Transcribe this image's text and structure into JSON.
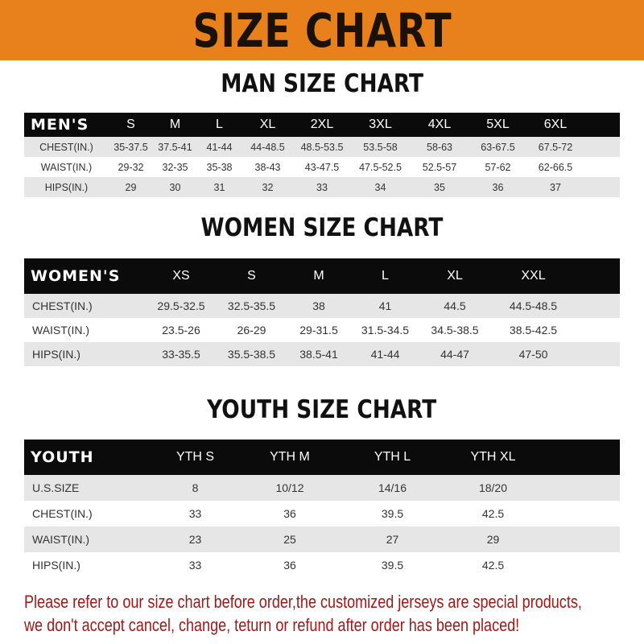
{
  "banner_title": "SIZE CHART",
  "men": {
    "title": "MAN SIZE CHART",
    "header": "MEN'S",
    "sizes": [
      "S",
      "M",
      "L",
      "XL",
      "2XL",
      "3XL",
      "4XL",
      "5XL",
      "6XL"
    ],
    "rows": [
      {
        "label": "CHEST(IN.)",
        "values": [
          "35-37.5",
          "37.5-41",
          "41-44",
          "44-48.5",
          "48.5-53.5",
          "53.5-58",
          "58-63",
          "63-67.5",
          "67.5-72"
        ]
      },
      {
        "label": "WAIST(IN.)",
        "values": [
          "29-32",
          "32-35",
          "35-38",
          "38-43",
          "43-47.5",
          "47.5-52.5",
          "52.5-57",
          "57-62",
          "62-66.5"
        ]
      },
      {
        "label": "HIPS(IN.)",
        "values": [
          "29",
          "30",
          "31",
          "32",
          "33",
          "34",
          "35",
          "36",
          "37"
        ]
      }
    ]
  },
  "women": {
    "title": "WOMEN SIZE CHART",
    "header": "WOMEN'S",
    "sizes": [
      "XS",
      "S",
      "M",
      "L",
      "XL",
      "XXL"
    ],
    "rows": [
      {
        "label": "CHEST(IN.)",
        "values": [
          "29.5-32.5",
          "32.5-35.5",
          "38",
          "41",
          "44.5",
          "44.5-48.5"
        ]
      },
      {
        "label": "WAIST(IN.)",
        "values": [
          "23.5-26",
          "26-29",
          "29-31.5",
          "31.5-34.5",
          "34.5-38.5",
          "38.5-42.5"
        ]
      },
      {
        "label": "HIPS(IN.)",
        "values": [
          "33-35.5",
          "35.5-38.5",
          "38.5-41",
          "41-44",
          "44-47",
          "47-50"
        ]
      }
    ]
  },
  "youth": {
    "title": "YOUTH SIZE CHART",
    "header": "YOUTH",
    "sizes": [
      "YTH S",
      "YTH M",
      "YTH L",
      "YTH XL"
    ],
    "rows": [
      {
        "label": "U.S.SIZE",
        "values": [
          "8",
          "10/12",
          "14/16",
          "18/20"
        ]
      },
      {
        "label": "CHEST(IN.)",
        "values": [
          "33",
          "36",
          "39.5",
          "42.5"
        ]
      },
      {
        "label": "WAIST(IN.)",
        "values": [
          "23",
          "25",
          "27",
          "29"
        ]
      },
      {
        "label": "HIPS(IN.)",
        "values": [
          "33",
          "36",
          "39.5",
          "42.5"
        ]
      }
    ]
  },
  "notice": {
    "line1": "Please refer to our size chart before order,the customized jerseys are special products,",
    "line2": "we don't accept cancel, change, teturn or refund after order has been placed!"
  },
  "colors": {
    "banner": "#E8801C",
    "header_row": "#0b0b0b",
    "shaded_row": "#e6e6e6",
    "notice": "#a01818"
  }
}
